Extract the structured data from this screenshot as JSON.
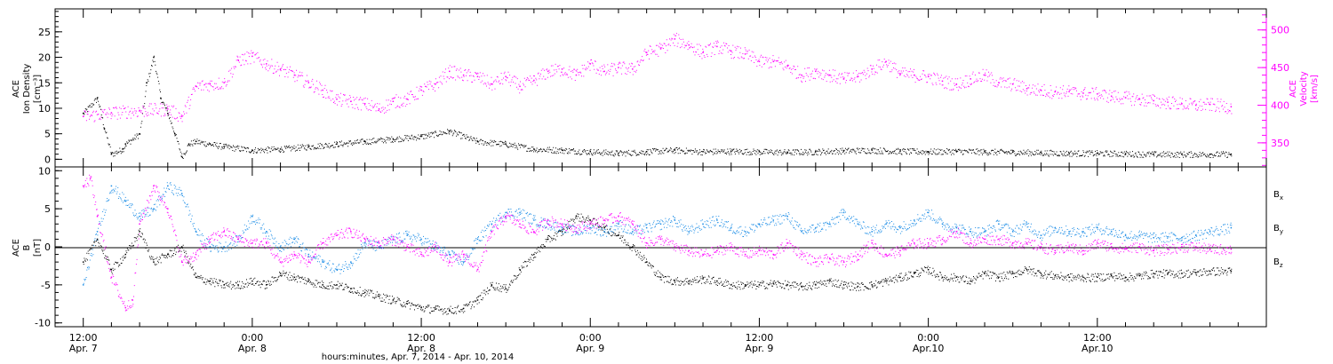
{
  "chart_data": [
    {
      "type": "scatter",
      "panel": "top",
      "ylabel_left": [
        "ACE",
        "Ion Density",
        "[cm⁻³]"
      ],
      "ylabel_right": [
        "ACE",
        "Velocity",
        "[km/s]"
      ],
      "y_left_ticks": [
        "0",
        "5",
        "10",
        "15",
        "20",
        "25"
      ],
      "y_right_ticks": [
        "350",
        "400",
        "450",
        "500"
      ],
      "ylim_left": [
        -1.5,
        29.5
      ],
      "ylim_right": [
        318,
        528
      ],
      "x_hours_range": [
        -2,
        84
      ],
      "series": [
        {
          "color": "#000000",
          "axis": "left",
          "x": [
            0,
            1,
            1.5,
            2,
            2.8,
            3,
            4,
            4.5,
            5,
            5.5,
            6,
            6.5,
            7,
            7.5,
            8,
            9,
            10,
            12,
            14,
            16,
            18,
            20,
            22,
            24,
            26,
            28,
            30,
            32,
            34,
            36,
            38,
            40,
            42,
            44,
            46,
            48,
            50,
            52,
            54,
            56,
            58,
            60,
            62,
            64,
            66,
            68,
            70,
            72,
            74,
            76,
            78,
            80,
            81.5
          ],
          "y": [
            9,
            12,
            6,
            1,
            2,
            3,
            5,
            15,
            20,
            12,
            9,
            5,
            0.5,
            3,
            3.5,
            3,
            2.5,
            1.8,
            2,
            2.5,
            3,
            3.5,
            4,
            4.5,
            5.5,
            3.5,
            3,
            2,
            1.8,
            1.5,
            1.2,
            1.5,
            1.8,
            1.5,
            1.6,
            1.5,
            1.4,
            1.5,
            1.7,
            1.8,
            1.6,
            1.5,
            1.6,
            1.5,
            1.4,
            1.3,
            1.2,
            1.2,
            1.1,
            1.0,
            1.0,
            1.0,
            1.0
          ]
        },
        {
          "color": "#ff00ff",
          "axis": "right",
          "x": [
            0,
            2,
            4,
            6,
            7,
            8,
            9,
            10,
            11,
            12,
            13,
            14,
            15,
            16,
            17,
            18,
            19,
            20,
            21,
            22,
            23,
            24,
            25,
            26,
            27,
            28,
            29,
            30,
            31,
            32,
            33,
            34,
            35,
            36,
            37,
            38,
            39,
            40,
            41,
            42,
            43,
            44,
            45,
            46,
            47,
            48,
            49,
            50,
            51,
            52,
            53,
            54,
            55,
            56,
            57,
            58,
            59,
            60,
            61,
            62,
            63,
            64,
            65,
            66,
            67,
            68,
            69,
            70,
            71,
            72,
            73,
            74,
            75,
            76,
            77,
            78,
            79,
            80,
            81.5
          ],
          "y": [
            385,
            390,
            393,
            395,
            385,
            425,
            428,
            430,
            460,
            465,
            455,
            448,
            440,
            430,
            420,
            408,
            405,
            402,
            395,
            405,
            408,
            420,
            428,
            445,
            440,
            438,
            428,
            438,
            425,
            433,
            445,
            448,
            440,
            455,
            445,
            450,
            448,
            470,
            475,
            488,
            480,
            470,
            478,
            472,
            468,
            458,
            458,
            452,
            440,
            445,
            440,
            435,
            438,
            448,
            458,
            442,
            440,
            438,
            432,
            428,
            435,
            440,
            430,
            428,
            422,
            420,
            418,
            418,
            416,
            415,
            412,
            410,
            408,
            406,
            404,
            402,
            400,
            401,
            398
          ]
        }
      ]
    },
    {
      "type": "scatter",
      "panel": "bottom",
      "ylabel_left": [
        "ACE",
        "B",
        "[nT]"
      ],
      "y_left_ticks": [
        "-10",
        "-5",
        "0",
        "5",
        "10"
      ],
      "ylim_left": [
        -10.5,
        10.5
      ],
      "x_hours_range": [
        -2,
        84
      ],
      "legend": [
        "Bx",
        "By",
        "Bz"
      ],
      "series": [
        {
          "name": "Bx",
          "color": "#000000",
          "x": [
            0,
            1,
            2,
            3,
            4,
            5,
            6,
            7,
            8,
            9,
            10,
            11,
            12,
            13,
            14,
            15,
            16,
            17,
            18,
            19,
            20,
            21,
            22,
            23,
            24,
            25,
            26,
            27,
            28,
            29,
            30,
            31,
            32,
            33,
            34,
            35,
            36,
            37,
            38,
            39,
            40,
            41,
            42,
            43,
            44,
            45,
            46,
            47,
            48,
            49,
            50,
            51,
            52,
            53,
            54,
            55,
            56,
            57,
            58,
            59,
            60,
            61,
            62,
            63,
            64,
            65,
            66,
            67,
            68,
            69,
            70,
            71,
            72,
            73,
            74,
            75,
            76,
            77,
            78,
            79,
            80,
            81.5
          ],
          "y": [
            -2,
            1,
            -3,
            -1,
            2,
            -2,
            -1,
            0,
            -4,
            -4.5,
            -5,
            -5,
            -4.5,
            -5,
            -3.5,
            -4,
            -4.5,
            -5,
            -5,
            -5.5,
            -6,
            -6.5,
            -7,
            -7.5,
            -8,
            -8.2,
            -8.3,
            -8.1,
            -7,
            -5,
            -5.5,
            -3,
            -1,
            1,
            2,
            4,
            3.5,
            2.5,
            1.5,
            0,
            -2,
            -4,
            -4.5,
            -4.5,
            -4.2,
            -4.5,
            -5,
            -5,
            -5,
            -4.8,
            -5,
            -5.2,
            -5,
            -4.5,
            -5,
            -5.2,
            -5,
            -4.5,
            -4,
            -3.5,
            -3,
            -4,
            -4,
            -4.5,
            -3.5,
            -4,
            -3.5,
            -3,
            -3.5,
            -3.8,
            -4,
            -4,
            -4,
            -3.8,
            -4,
            -3.8,
            -3.5,
            -3.5,
            -3.5,
            -3.4,
            -3.2,
            -3.2
          ]
        },
        {
          "name": "By",
          "color": "#1a8ce6",
          "x": [
            0,
            1,
            2,
            3,
            4,
            5,
            6,
            7,
            8,
            9,
            10,
            11,
            12,
            13,
            14,
            15,
            16,
            17,
            18,
            19,
            20,
            21,
            22,
            23,
            24,
            25,
            26,
            27,
            28,
            29,
            30,
            31,
            32,
            33,
            34,
            35,
            36,
            37,
            38,
            39,
            40,
            41,
            42,
            43,
            44,
            45,
            46,
            47,
            48,
            49,
            50,
            51,
            52,
            53,
            54,
            55,
            56,
            57,
            58,
            59,
            60,
            61,
            62,
            63,
            64,
            65,
            66,
            67,
            68,
            69,
            70,
            71,
            72,
            73,
            74,
            75,
            76,
            77,
            78,
            79,
            80,
            81.5
          ],
          "y": [
            -5,
            2,
            8,
            6,
            4,
            5,
            8,
            7,
            2,
            0,
            0,
            1,
            4,
            2,
            0,
            1,
            -1,
            -2,
            -3,
            -2,
            0.5,
            0,
            1,
            1.5,
            1,
            0,
            -1,
            -2,
            1,
            3,
            4.5,
            4.5,
            3.5,
            3,
            2.5,
            2,
            2.5,
            2,
            3,
            2,
            2.5,
            3,
            3.5,
            2,
            3,
            3.5,
            2.5,
            2,
            3,
            3.5,
            4,
            2,
            2.5,
            3,
            4.5,
            3,
            2,
            3,
            2.5,
            3.5,
            4.5,
            3,
            2.5,
            2,
            2,
            3,
            2,
            3,
            1.5,
            2.5,
            2,
            2,
            2.5,
            2,
            1.5,
            1.5,
            1.2,
            1.3,
            1.2,
            1.5,
            2,
            2.5
          ]
        },
        {
          "name": "Bz",
          "color": "#ff00ff",
          "x": [
            0,
            0.5,
            1,
            2,
            3,
            3.5,
            4,
            5,
            6,
            7,
            8,
            9,
            10,
            11,
            12,
            13,
            14,
            15,
            16,
            17,
            18,
            19,
            20,
            21,
            22,
            23,
            24,
            25,
            26,
            27,
            28,
            29,
            30,
            31,
            32,
            33,
            34,
            35,
            36,
            37,
            38,
            39,
            40,
            41,
            42,
            43,
            44,
            45,
            46,
            47,
            48,
            49,
            50,
            51,
            52,
            53,
            54,
            55,
            56,
            57,
            58,
            59,
            60,
            61,
            62,
            63,
            64,
            65,
            66,
            67,
            68,
            69,
            70,
            71,
            72,
            73,
            74,
            75,
            76,
            77,
            78,
            79,
            80,
            81.5
          ],
          "y": [
            8,
            9,
            4,
            -4,
            -8,
            -7,
            3,
            8,
            5,
            -2,
            -1,
            1,
            2,
            1,
            0.5,
            0.5,
            -2,
            -1,
            -2,
            0.5,
            1.5,
            2,
            1,
            0.5,
            1,
            0,
            -1,
            0,
            -2,
            -1,
            -3,
            2,
            4,
            3,
            2,
            3.5,
            3,
            2.5,
            3,
            3.5,
            4,
            3,
            0.5,
            1,
            0,
            -0.5,
            -1,
            -0.5,
            0,
            -1,
            -0.5,
            -1,
            0.5,
            -1,
            -2,
            -1.5,
            -2,
            -1,
            0.5,
            -1,
            -0.5,
            0.5,
            0.5,
            1,
            2,
            0.5,
            1,
            1,
            0.5,
            0.5,
            0,
            -0.5,
            0,
            -0.5,
            0.5,
            0,
            -0.2,
            0,
            -0.5,
            -0.3,
            0,
            0,
            -0.3,
            -0.3
          ]
        }
      ]
    }
  ],
  "x_axis": {
    "ticks": [
      {
        "time": "12:00",
        "date": "Apr. 7"
      },
      {
        "time": "0:00",
        "date": "Apr. 8"
      },
      {
        "time": "12:00",
        "date": "Apr. 8"
      },
      {
        "time": "0:00",
        "date": "Apr. 9"
      },
      {
        "time": "12:00",
        "date": "Apr. 9"
      },
      {
        "time": "0:00",
        "date": "Apr.10"
      },
      {
        "time": "12:00",
        "date": "Apr.10"
      }
    ],
    "title": "hours:minutes, Apr.  7, 2014 - Apr. 10, 2014"
  },
  "legend": {
    "bx": {
      "base": "B",
      "sub": "x"
    },
    "by": {
      "base": "B",
      "sub": "y"
    },
    "bz": {
      "base": "B",
      "sub": "z"
    }
  },
  "colors": {
    "density": "#000000",
    "velocity": "#ff00ff",
    "bx": "#000000",
    "by": "#1a8ce6",
    "bz": "#ff00ff",
    "velocity_axis": "#ff00ff"
  }
}
